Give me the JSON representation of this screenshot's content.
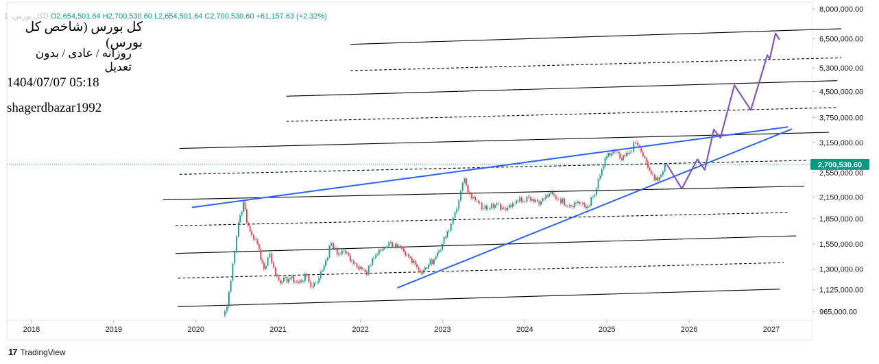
{
  "ohlc": {
    "symbol": "کل بورس، 1D",
    "open": "O2,654,501.64",
    "high": "H2,700,530.60",
    "low": "L2,654,501.64",
    "close": "C2,700,530.60",
    "change": "+61,157.63 (+2.32%)"
  },
  "overlay": {
    "title": "کل بورس (شاخص کل بورس)",
    "subtitle": "روزانه / عادی / بدون تعدیل",
    "datetime": "1404/07/07 05:18",
    "author": "shagerdbazar1992"
  },
  "branding": {
    "logo": "17",
    "name": "TradingView"
  },
  "colors": {
    "up": "#089981",
    "down": "#f23645",
    "trend": "#2962ff",
    "projection": "#7e57c2",
    "channel": "#000000",
    "price_label": "#089981"
  },
  "chart_data": {
    "type": "line",
    "scale": "log",
    "ylim": [
      910000,
      8200000
    ],
    "xlim": [
      2017.7,
      2027.5
    ],
    "xticks": [
      "2018",
      "2019",
      "2020",
      "2021",
      "2022",
      "2023",
      "2024",
      "2025",
      "2026",
      "2027"
    ],
    "yticks": [
      {
        "v": 8000000,
        "label": "8,000,000.00"
      },
      {
        "v": 6500000,
        "label": "6,500,000.00"
      },
      {
        "v": 5300000,
        "label": "5,300,000.00"
      },
      {
        "v": 4500000,
        "label": "4,500,000.00"
      },
      {
        "v": 3750000,
        "label": "3,750,000.00"
      },
      {
        "v": 3150000,
        "label": "3,150,000.00"
      },
      {
        "v": 2550000,
        "label": "2,550,000.00"
      },
      {
        "v": 2150000,
        "label": "2,150,000.00"
      },
      {
        "v": 1850000,
        "label": "1,850,000.00"
      },
      {
        "v": 1550000,
        "label": "1,550,000.00"
      },
      {
        "v": 1300000,
        "label": "1,300,000.00"
      },
      {
        "v": 1125000,
        "label": "1,125,000.00"
      },
      {
        "v": 965000,
        "label": "965,000.00"
      }
    ],
    "last_price": {
      "v": 2700530.6,
      "label": "2,700,530.60"
    },
    "price_path": [
      [
        2020.33,
        940000
      ],
      [
        2020.38,
        1000000
      ],
      [
        2020.45,
        1350000
      ],
      [
        2020.52,
        1800000
      ],
      [
        2020.58,
        2080000
      ],
      [
        2020.62,
        1800000
      ],
      [
        2020.68,
        1650000
      ],
      [
        2020.75,
        1550000
      ],
      [
        2020.83,
        1300000
      ],
      [
        2020.9,
        1450000
      ],
      [
        2020.97,
        1250000
      ],
      [
        2021.05,
        1190000
      ],
      [
        2021.15,
        1220000
      ],
      [
        2021.25,
        1180000
      ],
      [
        2021.35,
        1240000
      ],
      [
        2021.4,
        1150000
      ],
      [
        2021.5,
        1220000
      ],
      [
        2021.58,
        1380000
      ],
      [
        2021.65,
        1560000
      ],
      [
        2021.72,
        1440000
      ],
      [
        2021.8,
        1480000
      ],
      [
        2021.9,
        1380000
      ],
      [
        2022.0,
        1320000
      ],
      [
        2022.08,
        1250000
      ],
      [
        2022.15,
        1400000
      ],
      [
        2022.25,
        1480000
      ],
      [
        2022.35,
        1560000
      ],
      [
        2022.45,
        1520000
      ],
      [
        2022.55,
        1430000
      ],
      [
        2022.65,
        1380000
      ],
      [
        2022.75,
        1260000
      ],
      [
        2022.83,
        1340000
      ],
      [
        2022.92,
        1420000
      ],
      [
        2023.0,
        1550000
      ],
      [
        2023.08,
        1700000
      ],
      [
        2023.13,
        1860000
      ],
      [
        2023.2,
        2100000
      ],
      [
        2023.27,
        2450000
      ],
      [
        2023.33,
        2200000
      ],
      [
        2023.4,
        2100000
      ],
      [
        2023.5,
        1980000
      ],
      [
        2023.6,
        2050000
      ],
      [
        2023.75,
        1990000
      ],
      [
        2023.9,
        2100000
      ],
      [
        2024.05,
        2150000
      ],
      [
        2024.2,
        2080000
      ],
      [
        2024.3,
        2200000
      ],
      [
        2024.42,
        2120000
      ],
      [
        2024.55,
        2030000
      ],
      [
        2024.65,
        2080000
      ],
      [
        2024.75,
        1990000
      ],
      [
        2024.85,
        2180000
      ],
      [
        2024.92,
        2500000
      ],
      [
        2025.0,
        2850000
      ],
      [
        2025.1,
        2950000
      ],
      [
        2025.18,
        2780000
      ],
      [
        2025.28,
        2950000
      ],
      [
        2025.35,
        3150000
      ],
      [
        2025.42,
        2950000
      ],
      [
        2025.5,
        2650000
      ],
      [
        2025.58,
        2420000
      ],
      [
        2025.66,
        2510000
      ],
      [
        2025.73,
        2700530
      ]
    ],
    "projection_path": [
      [
        2025.73,
        2700530
      ],
      [
        2025.91,
        2280000
      ],
      [
        2026.1,
        2800000
      ],
      [
        2026.19,
        2600000
      ],
      [
        2026.3,
        3450000
      ],
      [
        2026.38,
        3250000
      ],
      [
        2026.55,
        4700000
      ],
      [
        2026.75,
        3950000
      ],
      [
        2026.95,
        5800000
      ],
      [
        2026.98,
        5650000
      ],
      [
        2027.05,
        6750000
      ],
      [
        2027.1,
        6450000
      ]
    ],
    "trendlines": [
      {
        "style": "trend",
        "from": [
          2019.95,
          2000000
        ],
        "to": [
          2027.2,
          3510000
        ]
      },
      {
        "style": "trend",
        "from": [
          2022.45,
          1140000
        ],
        "to": [
          2027.25,
          3460000
        ]
      }
    ],
    "channels": [
      {
        "style": "solid",
        "from": [
          2019.78,
          1000000
        ],
        "to": [
          2027.1,
          1130000
        ]
      },
      {
        "style": "dashed",
        "from": [
          2019.78,
          1220000
        ],
        "to": [
          2027.15,
          1360000
        ]
      },
      {
        "style": "solid",
        "from": [
          2019.75,
          1450000
        ],
        "to": [
          2027.3,
          1640000
        ]
      },
      {
        "style": "dashed",
        "from": [
          2019.75,
          1760000
        ],
        "to": [
          2027.2,
          1930000
        ]
      },
      {
        "style": "solid",
        "from": [
          2019.6,
          2110000
        ],
        "to": [
          2027.4,
          2320000
        ]
      },
      {
        "style": "dashed",
        "from": [
          2019.8,
          2520000
        ],
        "to": [
          2027.45,
          2780000
        ]
      },
      {
        "style": "solid",
        "from": [
          2019.8,
          3020000
        ],
        "to": [
          2027.7,
          3380000
        ]
      },
      {
        "style": "dashed",
        "from": [
          2021.1,
          3650000
        ],
        "to": [
          2027.8,
          4020000
        ]
      },
      {
        "style": "solid",
        "from": [
          2021.1,
          4350000
        ],
        "to": [
          2027.8,
          4850000
        ]
      },
      {
        "style": "dashed",
        "from": [
          2021.88,
          5200000
        ],
        "to": [
          2027.85,
          5690000
        ]
      },
      {
        "style": "solid",
        "from": [
          2021.88,
          6250000
        ],
        "to": [
          2027.85,
          6970000
        ]
      }
    ]
  }
}
